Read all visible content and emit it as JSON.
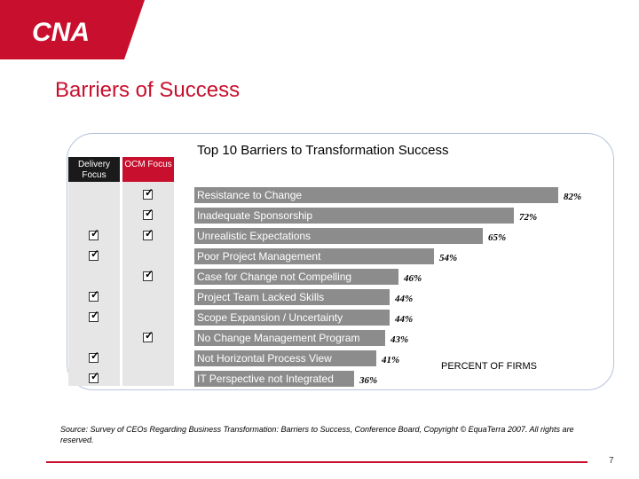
{
  "brand": {
    "logo_text": "CNA",
    "color_red": "#c8102e",
    "color_bar": "#8c8c8c",
    "color_dark": "#1a1a1a"
  },
  "slide": {
    "title": "Barriers of Success",
    "page_number": "7"
  },
  "columns": {
    "left": "Delivery Focus",
    "right": "OCM Focus"
  },
  "chart_data": {
    "type": "bar",
    "orientation": "horizontal",
    "title": "Top 10 Barriers to Transformation Success",
    "xlabel": "PERCENT OF FIRMS",
    "xlim": [
      0,
      100
    ],
    "categories": [
      "Resistance to Change",
      "Inadequate Sponsorship",
      "Unrealistic Expectations",
      "Poor Project Management",
      "Case for Change not Compelling",
      "Project Team Lacked Skills",
      "Scope Expansion / Uncertainty",
      "No Change Management Program",
      "Not Horizontal Process View",
      "IT Perspective not Integrated"
    ],
    "values": [
      82,
      72,
      65,
      54,
      46,
      44,
      44,
      43,
      41,
      36
    ],
    "value_labels": [
      "82%",
      "72%",
      "65%",
      "54%",
      "46%",
      "44%",
      "44%",
      "43%",
      "41%",
      "36%"
    ],
    "delivery_focus": [
      false,
      false,
      true,
      true,
      false,
      true,
      true,
      false,
      true,
      true
    ],
    "ocm_focus": [
      true,
      true,
      true,
      false,
      true,
      false,
      false,
      true,
      false,
      false
    ]
  },
  "source": "Source: Survey of CEOs Regarding Business Transformation: Barriers to Success, Conference Board, Copyright © EquaTerra 2007. All rights are reserved."
}
